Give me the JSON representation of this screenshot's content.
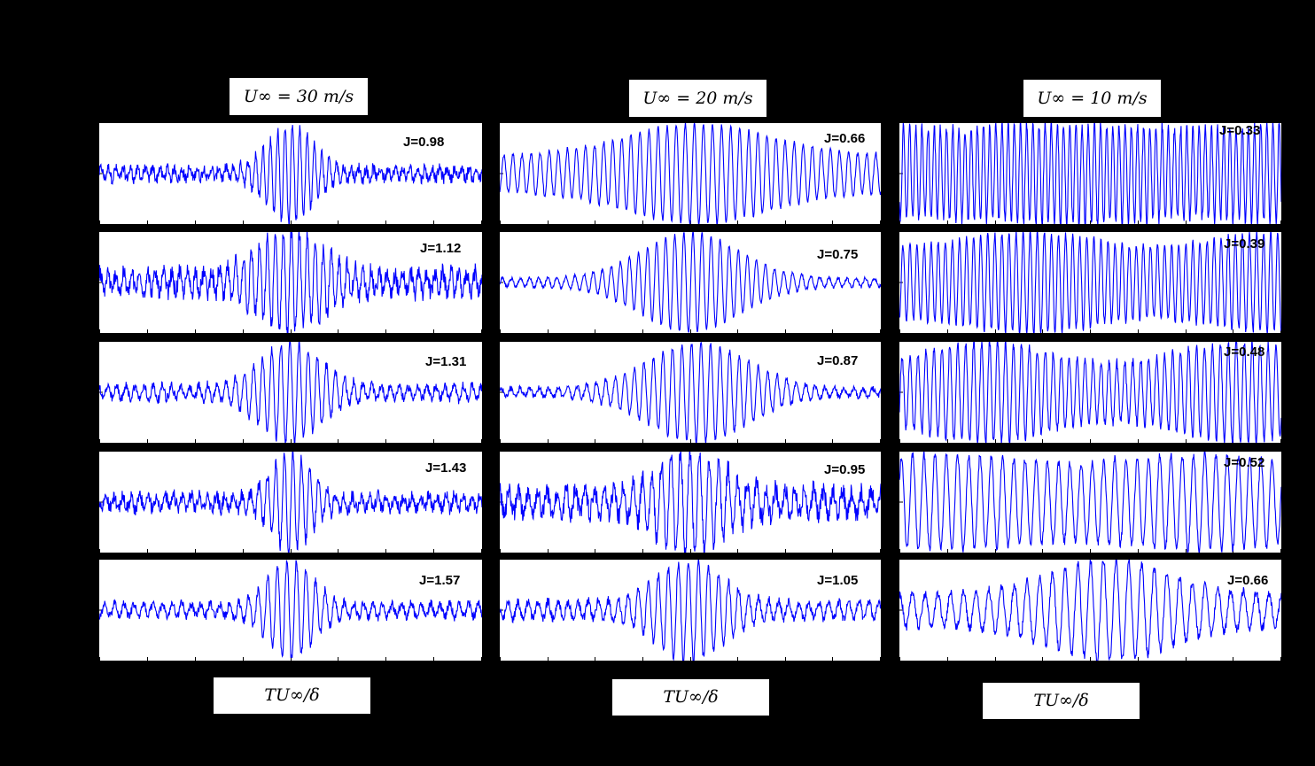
{
  "columns": [
    {
      "title": "U∞ = 30 m/s",
      "xlabel": "TU∞/δ",
      "j": [
        "J=0.98",
        "J=1.12",
        "J=1.31",
        "J=1.43",
        "J=1.57"
      ]
    },
    {
      "title": "U∞ = 20 m/s",
      "xlabel": "TU∞/δ",
      "j": [
        "J=0.66",
        "J=0.75",
        "J=0.87",
        "J=0.95",
        "J=1.05"
      ]
    },
    {
      "title": "U∞ = 10 m/s",
      "xlabel": "TU∞/δ",
      "j": [
        "J=0.33",
        "J=0.39",
        "J=0.48",
        "J=0.52",
        "J=0.66"
      ]
    }
  ],
  "chart_data": {
    "type": "line",
    "description_of_grid": "3 columns x 5 rows of time-series signal traces",
    "line_color": "#0000ff",
    "panels": [
      {
        "col": 0,
        "row": 0,
        "J": 0.98,
        "shape": "burst",
        "freq": 52,
        "center": 0.5,
        "width": 0.08,
        "peak": 0.95,
        "base": 0.1,
        "noise": 0.1
      },
      {
        "col": 0,
        "row": 1,
        "J": 1.12,
        "shape": "burst",
        "freq": 48,
        "center": 0.5,
        "width": 0.12,
        "peak": 0.95,
        "base": 0.18,
        "noise": 0.16
      },
      {
        "col": 0,
        "row": 2,
        "J": 1.31,
        "shape": "burst",
        "freq": 42,
        "center": 0.5,
        "width": 0.11,
        "peak": 0.95,
        "base": 0.12,
        "noise": 0.08
      },
      {
        "col": 0,
        "row": 3,
        "J": 1.43,
        "shape": "burst",
        "freq": 45,
        "center": 0.5,
        "width": 0.07,
        "peak": 0.95,
        "base": 0.12,
        "noise": 0.12
      },
      {
        "col": 0,
        "row": 4,
        "J": 1.57,
        "shape": "burst",
        "freq": 40,
        "center": 0.5,
        "width": 0.08,
        "peak": 0.95,
        "base": 0.12,
        "noise": 0.08
      },
      {
        "col": 1,
        "row": 0,
        "J": 0.66,
        "shape": "burst",
        "freq": 42,
        "center": 0.52,
        "width": 0.26,
        "peak": 0.95,
        "base": 0.35,
        "noise": 0.04
      },
      {
        "col": 1,
        "row": 1,
        "J": 0.75,
        "shape": "burst",
        "freq": 42,
        "center": 0.5,
        "width": 0.18,
        "peak": 0.95,
        "base": 0.08,
        "noise": 0.03
      },
      {
        "col": 1,
        "row": 2,
        "J": 0.87,
        "shape": "burst",
        "freq": 40,
        "center": 0.52,
        "width": 0.18,
        "peak": 0.95,
        "base": 0.08,
        "noise": 0.05
      },
      {
        "col": 1,
        "row": 3,
        "J": 0.95,
        "shape": "burst",
        "freq": 40,
        "center": 0.5,
        "width": 0.12,
        "peak": 0.95,
        "base": 0.22,
        "noise": 0.18
      },
      {
        "col": 1,
        "row": 4,
        "J": 1.05,
        "shape": "burst",
        "freq": 38,
        "center": 0.5,
        "width": 0.12,
        "peak": 0.95,
        "base": 0.16,
        "noise": 0.08
      },
      {
        "col": 2,
        "row": 0,
        "J": 0.33,
        "shape": "steady",
        "freq": 62,
        "center": 0.5,
        "width": 0.5,
        "peak": 0.95,
        "base": 0.85,
        "noise": 0.1
      },
      {
        "col": 2,
        "row": 1,
        "J": 0.39,
        "shape": "steady",
        "freq": 54,
        "center": 0.5,
        "width": 0.5,
        "peak": 0.95,
        "base": 0.7,
        "noise": 0.06
      },
      {
        "col": 2,
        "row": 2,
        "J": 0.48,
        "shape": "steady",
        "freq": 48,
        "center": 0.5,
        "width": 0.4,
        "peak": 0.95,
        "base": 0.55,
        "noise": 0.08
      },
      {
        "col": 2,
        "row": 3,
        "J": 0.52,
        "shape": "steady",
        "freq": 34,
        "center": 0.5,
        "width": 0.5,
        "peak": 0.9,
        "base": 0.75,
        "noise": 0.07
      },
      {
        "col": 2,
        "row": 4,
        "J": 0.66,
        "shape": "burst",
        "freq": 30,
        "center": 0.55,
        "width": 0.22,
        "peak": 0.95,
        "base": 0.3,
        "noise": 0.08
      }
    ]
  }
}
